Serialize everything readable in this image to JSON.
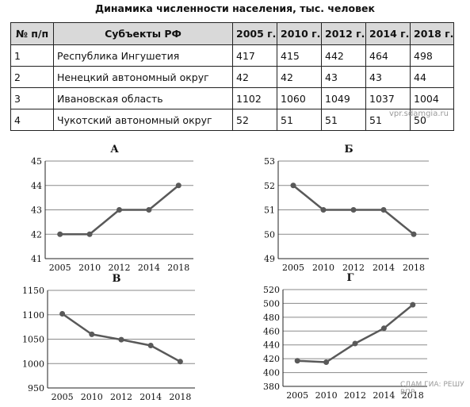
{
  "title": "Динамика численности населения, тыс. человек",
  "table": {
    "headers": [
      "№ п/п",
      "Субъекты РФ",
      "2005 г.",
      "2010 г.",
      "2012 г.",
      "2014 г.",
      "2018 г."
    ],
    "rows": [
      [
        "1",
        "Республика Ингушетия",
        "417",
        "415",
        "442",
        "464",
        "498"
      ],
      [
        "2",
        "Ненецкий автономный округ",
        "42",
        "42",
        "43",
        "43",
        "44"
      ],
      [
        "3",
        "Ивановская область",
        "1102",
        "1060",
        "1049",
        "1037",
        "1004"
      ],
      [
        "4",
        "Чукотский автономный округ",
        "52",
        "51",
        "51",
        "51",
        "50"
      ]
    ]
  },
  "watermark": "vpr.sdamgia.ru",
  "watermark2": "СДАМ ГИА: РЕШУ ВПР",
  "chart_data": [
    {
      "type": "line",
      "title": "А",
      "categories": [
        "2005",
        "2010",
        "2012",
        "2014",
        "2018"
      ],
      "values": [
        42,
        42,
        43,
        43,
        44
      ],
      "ylim": [
        41,
        45
      ],
      "yticks": [
        41,
        42,
        43,
        44,
        45
      ],
      "grid": true,
      "color": "#595959"
    },
    {
      "type": "line",
      "title": "Б",
      "categories": [
        "2005",
        "2010",
        "2012",
        "2014",
        "2018"
      ],
      "values": [
        52,
        51,
        51,
        51,
        50
      ],
      "ylim": [
        49,
        53
      ],
      "yticks": [
        49,
        50,
        51,
        52,
        53
      ],
      "grid": true,
      "color": "#595959"
    },
    {
      "type": "line",
      "title": "В",
      "categories": [
        "2005",
        "2010",
        "2012",
        "2014",
        "2018"
      ],
      "values": [
        1102,
        1060,
        1049,
        1037,
        1004
      ],
      "ylim": [
        950,
        1150
      ],
      "yticks": [
        950,
        1000,
        1050,
        1100,
        1150
      ],
      "grid": true,
      "color": "#595959"
    },
    {
      "type": "line",
      "title": "Г",
      "categories": [
        "2005",
        "2010",
        "2012",
        "2014",
        "2018"
      ],
      "values": [
        417,
        415,
        442,
        464,
        498
      ],
      "ylim": [
        380,
        520
      ],
      "yticks": [
        380,
        400,
        420,
        440,
        460,
        480,
        500,
        520
      ],
      "grid": true,
      "color": "#595959"
    }
  ]
}
